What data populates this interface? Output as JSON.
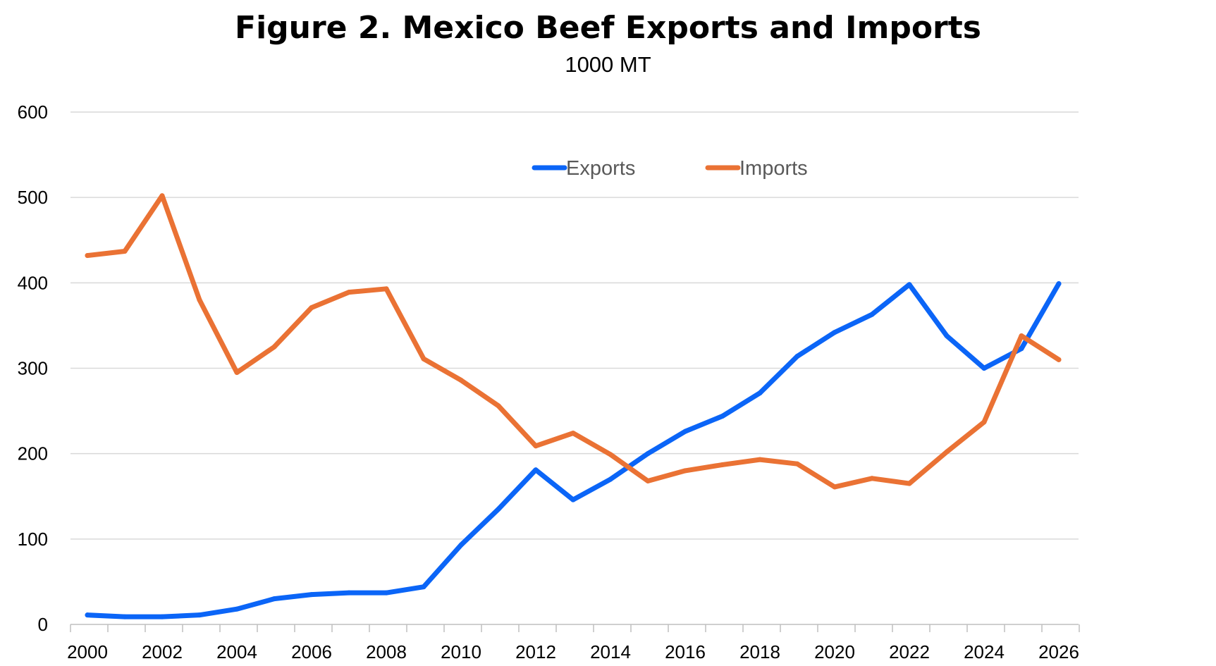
{
  "chart_data": {
    "type": "line",
    "title": "Figure 2. Mexico Beef Exports and Imports",
    "subtitle": "1000 MT",
    "xlabel": "",
    "ylabel": "",
    "ylim": [
      0,
      600
    ],
    "xlim": [
      2000,
      2026
    ],
    "yticks": [
      "0",
      "100",
      "200",
      "300",
      "400",
      "500",
      "600"
    ],
    "xticks": [
      "2000",
      "2002",
      "2004",
      "2006",
      "2008",
      "2010",
      "2012",
      "2014",
      "2016",
      "2018",
      "2020",
      "2022",
      "2024",
      "2026"
    ],
    "grid": true,
    "legend_position": "top-center",
    "x": [
      2000,
      2001,
      2002,
      2003,
      2004,
      2005,
      2006,
      2007,
      2008,
      2009,
      2010,
      2011,
      2012,
      2013,
      2014,
      2015,
      2016,
      2017,
      2018,
      2019,
      2020,
      2021,
      2022,
      2023,
      2024,
      2025,
      2026
    ],
    "series": [
      {
        "name": "Exports",
        "color": "#0b65f7",
        "values": [
          11,
          9,
          9,
          11,
          18,
          30,
          35,
          37,
          37,
          44,
          93,
          135,
          181,
          146,
          170,
          200,
          226,
          244,
          271,
          314,
          342,
          363,
          398,
          338,
          300,
          323,
          399
        ]
      },
      {
        "name": "Imports",
        "color": "#ea7234",
        "values": [
          432,
          437,
          502,
          380,
          295,
          325,
          371,
          389,
          393,
          311,
          286,
          256,
          209,
          224,
          199,
          168,
          180,
          187,
          193,
          188,
          161,
          171,
          165,
          202,
          237,
          338,
          310
        ]
      }
    ]
  }
}
